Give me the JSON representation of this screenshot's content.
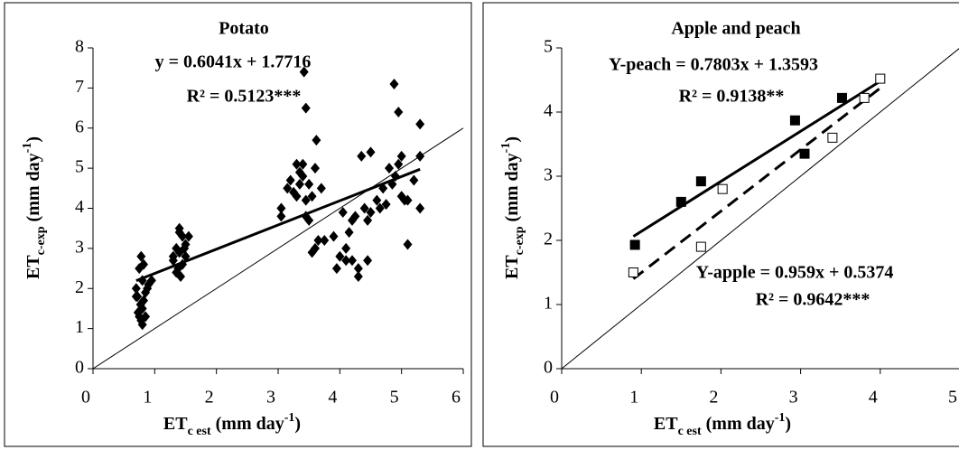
{
  "chart_data": [
    {
      "type": "scatter",
      "title": "Potato",
      "annotations": [
        "y = 0.6041x + 1.7716",
        "R² = 0.5123***"
      ],
      "xlabel": [
        "ET",
        "c est",
        " (mm day",
        "-1",
        ")"
      ],
      "ylabel": [
        "ET",
        "c-exp",
        " (mm day",
        "-1",
        ")"
      ],
      "xlim": [
        0,
        6
      ],
      "ylim": [
        0,
        8
      ],
      "xticks": [
        0,
        1,
        2,
        3,
        4,
        5,
        6
      ],
      "yticks": [
        0,
        1,
        2,
        3,
        4,
        5,
        6,
        7,
        8
      ],
      "series": [
        {
          "color": "#000000",
          "marker": "diamond",
          "x": [
            0.7,
            0.72,
            0.75,
            0.78,
            0.8,
            0.82,
            0.75,
            0.78,
            0.8,
            0.73,
            0.85,
            0.82,
            0.9,
            0.77,
            0.8,
            0.7,
            0.85,
            0.95,
            0.88,
            1.3,
            1.35,
            1.4,
            1.45,
            1.4,
            1.38,
            1.42,
            1.5,
            1.55,
            1.3,
            1.45,
            1.35,
            1.5,
            1.4,
            1.48,
            3.05,
            3.05,
            3.15,
            3.25,
            3.3,
            3.35,
            3.4,
            3.42,
            3.45,
            3.4,
            3.3,
            3.45,
            3.5,
            3.55,
            3.6,
            3.62,
            3.5,
            3.45,
            3.35,
            3.2,
            3.7,
            3.6,
            3.65,
            3.75,
            3.55,
            3.9,
            3.95,
            4.0,
            4.05,
            4.1,
            4.15,
            4.2,
            4.25,
            4.3,
            4.3,
            4.35,
            4.4,
            4.45,
            4.45,
            4.5,
            4.2,
            4.1,
            4.5,
            4.6,
            4.7,
            4.75,
            4.8,
            4.85,
            4.88,
            4.9,
            4.95,
            4.95,
            5.0,
            5.0,
            5.05,
            5.1,
            5.1,
            5.2,
            5.3,
            5.3,
            5.3,
            4.65
          ],
          "values": [
            2.0,
            1.8,
            2.5,
            2.8,
            2.2,
            1.7,
            1.3,
            1.2,
            1.1,
            1.4,
            1.9,
            2.6,
            2.1,
            1.6,
            1.5,
            1.8,
            1.3,
            2.2,
            2.0,
            2.7,
            3.0,
            3.5,
            3.3,
            2.9,
            2.5,
            2.3,
            3.1,
            3.3,
            2.8,
            2.6,
            2.4,
            2.8,
            3.4,
            3.0,
            3.8,
            4.0,
            4.5,
            4.4,
            5.1,
            4.9,
            5.1,
            7.4,
            6.5,
            4.8,
            4.3,
            4.2,
            4.6,
            4.3,
            5.0,
            5.7,
            3.7,
            3.8,
            4.6,
            4.7,
            4.5,
            3.0,
            3.2,
            3.2,
            2.9,
            3.3,
            2.5,
            2.8,
            3.9,
            3.0,
            3.4,
            2.7,
            3.8,
            2.5,
            2.3,
            5.3,
            4.0,
            2.7,
            3.7,
            5.4,
            3.7,
            2.7,
            3.9,
            4.2,
            4.5,
            4.1,
            5.0,
            4.6,
            7.1,
            4.8,
            5.1,
            6.4,
            5.3,
            4.3,
            4.2,
            3.1,
            4.2,
            4.7,
            6.1,
            5.3,
            4.0,
            4.0
          ],
          "trend": {
            "slope": 0.6041,
            "intercept": 1.7716,
            "style": "solid"
          }
        }
      ]
    },
    {
      "type": "scatter",
      "title": "Apple and peach",
      "annotations": [
        "Y-peach = 0.7803x + 1.3593",
        "R² = 0.9138**",
        "Y-apple = 0.959x + 0.5374",
        "R² = 0.9642***"
      ],
      "xlabel": [
        "ET",
        "c est",
        " (mm day",
        "-1",
        ")"
      ],
      "ylabel": [
        "ET",
        "c-exp",
        " (mm day",
        "-1",
        ")"
      ],
      "xlim": [
        0,
        5
      ],
      "ylim": [
        0,
        5
      ],
      "xticks": [
        0,
        1,
        2,
        3,
        4,
        5
      ],
      "yticks": [
        0,
        1,
        2,
        3,
        4,
        5
      ],
      "series": [
        {
          "color": "#000000",
          "marker": "square-filled",
          "x": [
            0.92,
            1.5,
            1.75,
            2.93,
            3.05,
            3.52
          ],
          "values": [
            1.93,
            2.6,
            2.92,
            3.87,
            3.35,
            4.22
          ],
          "trend": {
            "slope": 0.7803,
            "intercept": 1.3593,
            "style": "solid"
          }
        },
        {
          "color": "#000000",
          "marker": "square-open",
          "x": [
            0.9,
            1.75,
            2.02,
            3.4,
            3.8,
            4.0
          ],
          "values": [
            1.5,
            1.9,
            2.8,
            3.6,
            4.22,
            4.52
          ],
          "trend": {
            "slope": 0.959,
            "intercept": 0.5374,
            "style": "dashed"
          }
        }
      ]
    }
  ]
}
